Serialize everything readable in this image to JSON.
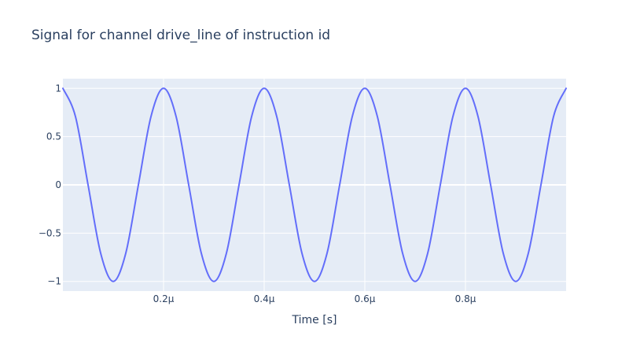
{
  "chart_data": {
    "type": "line",
    "title": "Signal for channel drive_line of instruction id",
    "xlabel": "Time [s]",
    "ylabel": "",
    "xlim": [
      0,
      1e-06
    ],
    "ylim": [
      -1.1,
      1.1
    ],
    "grid": true,
    "x_ticks": [
      {
        "value": 2e-07,
        "label": "0.2μ"
      },
      {
        "value": 4e-07,
        "label": "0.4μ"
      },
      {
        "value": 6e-07,
        "label": "0.6μ"
      },
      {
        "value": 8e-07,
        "label": "0.8μ"
      }
    ],
    "y_ticks": [
      {
        "value": 1,
        "label": "1"
      },
      {
        "value": 0.5,
        "label": "0.5"
      },
      {
        "value": 0,
        "label": "0"
      },
      {
        "value": -0.5,
        "label": "−0.5"
      },
      {
        "value": -1,
        "label": "−1"
      }
    ],
    "series": [
      {
        "color": "#636efa",
        "x": [
          0,
          2.5e-08,
          5e-08,
          7.5e-08,
          1e-07,
          1.25e-07,
          1.5e-07,
          1.75e-07,
          2e-07,
          2.25e-07,
          2.5e-07,
          2.75e-07,
          3e-07,
          3.25e-07,
          3.5e-07,
          3.75e-07,
          4e-07,
          4.25e-07,
          4.5e-07,
          4.75e-07,
          5e-07,
          5.25e-07,
          5.5e-07,
          5.75e-07,
          6e-07,
          6.25e-07,
          6.5e-07,
          6.75e-07,
          7e-07,
          7.25e-07,
          7.5e-07,
          7.75e-07,
          8e-07,
          8.25e-07,
          8.5e-07,
          8.75e-07,
          9e-07,
          9.25e-07,
          9.5e-07,
          9.75e-07,
          1e-06
        ],
        "y": [
          1,
          0.7071,
          0,
          -0.7071,
          -1,
          -0.7071,
          0,
          0.7071,
          1,
          0.7071,
          0,
          -0.7071,
          -1,
          -0.7071,
          0,
          0.7071,
          1,
          0.7071,
          0,
          -0.7071,
          -1,
          -0.7071,
          0,
          0.7071,
          1,
          0.7071,
          0,
          -0.7071,
          -1,
          -0.7071,
          0,
          0.7071,
          1,
          0.7071,
          0,
          -0.7071,
          -1,
          -0.7071,
          0,
          0.7071,
          1
        ]
      }
    ]
  }
}
